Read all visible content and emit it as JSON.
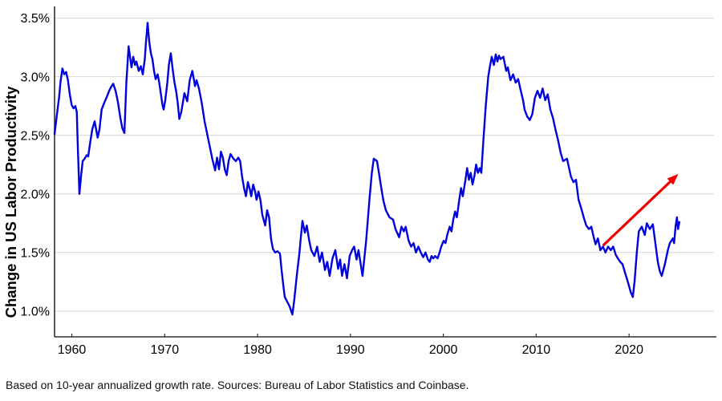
{
  "figure": {
    "caption": "Based on 10-year annualized growth rate. Sources: Bureau of Labor Statistics and Coinbase.",
    "colors": {
      "line": "#0101dd",
      "arrow": "#ee0000",
      "grid": "#d6d6d6",
      "axis": "#2e2e2e",
      "text": "#000000",
      "background": "#ffffff"
    }
  },
  "chart_data": {
    "type": "line",
    "title": "",
    "xlabel": "",
    "ylabel": "Change in US Labor Productivity",
    "grid": "horizontal",
    "legend": "none",
    "x_ticks": [
      1960,
      1970,
      1980,
      1990,
      2000,
      2010,
      2020
    ],
    "y_ticks": [
      {
        "value": 1.0,
        "label": "1.0%"
      },
      {
        "value": 1.5,
        "label": "1.5%"
      },
      {
        "value": 2.0,
        "label": "2.0%"
      },
      {
        "value": 2.5,
        "label": "2.5%"
      },
      {
        "value": 3.0,
        "label": "3.0%"
      },
      {
        "value": 3.5,
        "label": "3.5%"
      }
    ],
    "xlim": [
      1958.14,
      2029.14
    ],
    "ylim": [
      0.78,
      3.6
    ],
    "annotation_arrow": {
      "from": [
        2017.2,
        1.56
      ],
      "to": [
        2025.3,
        2.17
      ],
      "color": "#ee0000"
    },
    "series": [
      {
        "name": "US labor productivity (10-yr annualized growth, %)",
        "points": [
          [
            1958.14,
            2.51
          ],
          [
            1958.4,
            2.68
          ],
          [
            1958.62,
            2.82
          ],
          [
            1958.79,
            2.96
          ],
          [
            1958.99,
            3.07
          ],
          [
            1959.18,
            3.02
          ],
          [
            1959.38,
            3.04
          ],
          [
            1959.58,
            2.97
          ],
          [
            1959.78,
            2.85
          ],
          [
            1959.98,
            2.76
          ],
          [
            1960.18,
            2.73
          ],
          [
            1960.38,
            2.75
          ],
          [
            1960.53,
            2.7
          ],
          [
            1960.65,
            2.38
          ],
          [
            1960.82,
            2.0
          ],
          [
            1960.99,
            2.15
          ],
          [
            1961.17,
            2.28
          ],
          [
            1961.38,
            2.3
          ],
          [
            1961.6,
            2.33
          ],
          [
            1961.77,
            2.32
          ],
          [
            1961.94,
            2.42
          ],
          [
            1962.2,
            2.55
          ],
          [
            1962.46,
            2.62
          ],
          [
            1962.78,
            2.48
          ],
          [
            1962.98,
            2.55
          ],
          [
            1963.21,
            2.72
          ],
          [
            1963.5,
            2.78
          ],
          [
            1963.78,
            2.83
          ],
          [
            1964.02,
            2.88
          ],
          [
            1964.21,
            2.91
          ],
          [
            1964.45,
            2.94
          ],
          [
            1964.71,
            2.88
          ],
          [
            1964.97,
            2.78
          ],
          [
            1965.22,
            2.65
          ],
          [
            1965.44,
            2.56
          ],
          [
            1965.66,
            2.52
          ],
          [
            1965.87,
            2.95
          ],
          [
            1966.11,
            3.26
          ],
          [
            1966.42,
            3.08
          ],
          [
            1966.61,
            3.17
          ],
          [
            1966.8,
            3.1
          ],
          [
            1966.95,
            3.13
          ],
          [
            1967.21,
            3.05
          ],
          [
            1967.43,
            3.09
          ],
          [
            1967.64,
            3.02
          ],
          [
            1967.86,
            3.15
          ],
          [
            1967.99,
            3.3
          ],
          [
            1968.16,
            3.46
          ],
          [
            1968.33,
            3.3
          ],
          [
            1968.51,
            3.2
          ],
          [
            1968.68,
            3.15
          ],
          [
            1968.85,
            3.05
          ],
          [
            1969.02,
            2.98
          ],
          [
            1969.24,
            3.02
          ],
          [
            1969.41,
            2.95
          ],
          [
            1969.59,
            2.85
          ],
          [
            1969.76,
            2.76
          ],
          [
            1969.89,
            2.72
          ],
          [
            1970.06,
            2.8
          ],
          [
            1970.28,
            2.95
          ],
          [
            1970.45,
            3.1
          ],
          [
            1970.66,
            3.2
          ],
          [
            1970.88,
            3.05
          ],
          [
            1971.05,
            2.95
          ],
          [
            1971.23,
            2.88
          ],
          [
            1971.4,
            2.78
          ],
          [
            1971.57,
            2.64
          ],
          [
            1971.79,
            2.7
          ],
          [
            1972.12,
            2.86
          ],
          [
            1972.43,
            2.79
          ],
          [
            1972.69,
            2.97
          ],
          [
            1972.98,
            3.05
          ],
          [
            1973.26,
            2.92
          ],
          [
            1973.43,
            2.97
          ],
          [
            1973.69,
            2.9
          ],
          [
            1973.98,
            2.78
          ],
          [
            1974.29,
            2.62
          ],
          [
            1974.6,
            2.5
          ],
          [
            1974.81,
            2.42
          ],
          [
            1975.12,
            2.3
          ],
          [
            1975.43,
            2.2
          ],
          [
            1975.64,
            2.31
          ],
          [
            1975.85,
            2.21
          ],
          [
            1976.05,
            2.36
          ],
          [
            1976.26,
            2.31
          ],
          [
            1976.47,
            2.21
          ],
          [
            1976.68,
            2.16
          ],
          [
            1976.88,
            2.28
          ],
          [
            1977.09,
            2.34
          ],
          [
            1977.4,
            2.3
          ],
          [
            1977.66,
            2.28
          ],
          [
            1977.92,
            2.31
          ],
          [
            1978.13,
            2.28
          ],
          [
            1978.33,
            2.15
          ],
          [
            1978.54,
            2.05
          ],
          [
            1978.75,
            1.98
          ],
          [
            1978.96,
            2.1
          ],
          [
            1979.16,
            2.04
          ],
          [
            1979.32,
            1.98
          ],
          [
            1979.53,
            2.08
          ],
          [
            1979.73,
            2.02
          ],
          [
            1979.89,
            1.95
          ],
          [
            1980.1,
            2.02
          ],
          [
            1980.3,
            1.95
          ],
          [
            1980.51,
            1.82
          ],
          [
            1980.82,
            1.73
          ],
          [
            1981.03,
            1.86
          ],
          [
            1981.24,
            1.8
          ],
          [
            1981.44,
            1.62
          ],
          [
            1981.65,
            1.53
          ],
          [
            1981.89,
            1.5
          ],
          [
            1982.15,
            1.51
          ],
          [
            1982.41,
            1.49
          ],
          [
            1982.58,
            1.35
          ],
          [
            1982.8,
            1.2
          ],
          [
            1982.93,
            1.12
          ],
          [
            1983.19,
            1.08
          ],
          [
            1983.45,
            1.04
          ],
          [
            1983.75,
            0.97
          ],
          [
            1983.96,
            1.1
          ],
          [
            1984.22,
            1.3
          ],
          [
            1984.51,
            1.5
          ],
          [
            1984.66,
            1.63
          ],
          [
            1984.83,
            1.77
          ],
          [
            1985.09,
            1.67
          ],
          [
            1985.3,
            1.73
          ],
          [
            1985.56,
            1.6
          ],
          [
            1985.78,
            1.52
          ],
          [
            1986.12,
            1.47
          ],
          [
            1986.41,
            1.55
          ],
          [
            1986.69,
            1.42
          ],
          [
            1986.94,
            1.5
          ],
          [
            1987.26,
            1.35
          ],
          [
            1987.5,
            1.42
          ],
          [
            1987.76,
            1.3
          ],
          [
            1988.07,
            1.45
          ],
          [
            1988.37,
            1.52
          ],
          [
            1988.67,
            1.36
          ],
          [
            1988.89,
            1.44
          ],
          [
            1989.1,
            1.3
          ],
          [
            1989.36,
            1.4
          ],
          [
            1989.62,
            1.28
          ],
          [
            1989.92,
            1.47
          ],
          [
            1990.18,
            1.52
          ],
          [
            1990.4,
            1.55
          ],
          [
            1990.66,
            1.44
          ],
          [
            1990.87,
            1.52
          ],
          [
            1991.3,
            1.3
          ],
          [
            1991.69,
            1.6
          ],
          [
            1992.04,
            1.95
          ],
          [
            1992.3,
            2.18
          ],
          [
            1992.51,
            2.3
          ],
          [
            1992.86,
            2.28
          ],
          [
            1993.12,
            2.15
          ],
          [
            1993.38,
            2.02
          ],
          [
            1993.55,
            1.94
          ],
          [
            1993.81,
            1.86
          ],
          [
            1994.2,
            1.8
          ],
          [
            1994.59,
            1.78
          ],
          [
            1994.85,
            1.7
          ],
          [
            1995.24,
            1.63
          ],
          [
            1995.5,
            1.72
          ],
          [
            1995.75,
            1.68
          ],
          [
            1995.95,
            1.72
          ],
          [
            1996.27,
            1.6
          ],
          [
            1996.53,
            1.55
          ],
          [
            1996.79,
            1.58
          ],
          [
            1997.05,
            1.5
          ],
          [
            1997.31,
            1.55
          ],
          [
            1997.57,
            1.5
          ],
          [
            1997.83,
            1.46
          ],
          [
            1998.08,
            1.5
          ],
          [
            1998.34,
            1.44
          ],
          [
            1998.54,
            1.42
          ],
          [
            1998.73,
            1.47
          ],
          [
            1998.93,
            1.45
          ],
          [
            1999.12,
            1.47
          ],
          [
            1999.38,
            1.45
          ],
          [
            1999.6,
            1.5
          ],
          [
            1999.77,
            1.55
          ],
          [
            2000.03,
            1.6
          ],
          [
            2000.23,
            1.58
          ],
          [
            2000.42,
            1.65
          ],
          [
            2000.68,
            1.72
          ],
          [
            2000.88,
            1.68
          ],
          [
            2001.07,
            1.78
          ],
          [
            2001.27,
            1.85
          ],
          [
            2001.46,
            1.8
          ],
          [
            2001.72,
            1.95
          ],
          [
            2001.91,
            2.05
          ],
          [
            2002.1,
            1.98
          ],
          [
            2002.36,
            2.11
          ],
          [
            2002.56,
            2.22
          ],
          [
            2002.75,
            2.12
          ],
          [
            2002.95,
            2.18
          ],
          [
            2003.14,
            2.08
          ],
          [
            2003.34,
            2.15
          ],
          [
            2003.53,
            2.25
          ],
          [
            2003.73,
            2.18
          ],
          [
            2003.92,
            2.22
          ],
          [
            2004.09,
            2.18
          ],
          [
            2004.31,
            2.45
          ],
          [
            2004.57,
            2.75
          ],
          [
            2004.83,
            3.0
          ],
          [
            2005.04,
            3.1
          ],
          [
            2005.21,
            3.17
          ],
          [
            2005.44,
            3.1
          ],
          [
            2005.65,
            3.19
          ],
          [
            2005.82,
            3.13
          ],
          [
            2005.99,
            3.18
          ],
          [
            2006.16,
            3.15
          ],
          [
            2006.47,
            3.17
          ],
          [
            2006.77,
            3.05
          ],
          [
            2006.94,
            3.08
          ],
          [
            2007.23,
            2.97
          ],
          [
            2007.51,
            3.02
          ],
          [
            2007.79,
            2.95
          ],
          [
            2008.06,
            2.98
          ],
          [
            2008.34,
            2.88
          ],
          [
            2008.58,
            2.8
          ],
          [
            2008.75,
            2.72
          ],
          [
            2009.03,
            2.66
          ],
          [
            2009.31,
            2.63
          ],
          [
            2009.58,
            2.68
          ],
          [
            2009.86,
            2.82
          ],
          [
            2010.14,
            2.88
          ],
          [
            2010.41,
            2.82
          ],
          [
            2010.69,
            2.9
          ],
          [
            2010.97,
            2.8
          ],
          [
            2011.24,
            2.85
          ],
          [
            2011.52,
            2.72
          ],
          [
            2011.8,
            2.65
          ],
          [
            2012.07,
            2.55
          ],
          [
            2012.35,
            2.46
          ],
          [
            2012.63,
            2.35
          ],
          [
            2012.9,
            2.28
          ],
          [
            2013.32,
            2.3
          ],
          [
            2013.73,
            2.15
          ],
          [
            2014.01,
            2.1
          ],
          [
            2014.28,
            2.12
          ],
          [
            2014.56,
            1.95
          ],
          [
            2014.84,
            1.88
          ],
          [
            2015.11,
            1.8
          ],
          [
            2015.39,
            1.73
          ],
          [
            2015.67,
            1.7
          ],
          [
            2015.93,
            1.72
          ],
          [
            2016.19,
            1.63
          ],
          [
            2016.39,
            1.57
          ],
          [
            2016.64,
            1.62
          ],
          [
            2016.91,
            1.52
          ],
          [
            2017.19,
            1.55
          ],
          [
            2017.46,
            1.5
          ],
          [
            2017.74,
            1.55
          ],
          [
            2018.02,
            1.52
          ],
          [
            2018.29,
            1.55
          ],
          [
            2018.57,
            1.48
          ],
          [
            2018.78,
            1.45
          ],
          [
            2019.04,
            1.42
          ],
          [
            2019.29,
            1.4
          ],
          [
            2019.55,
            1.33
          ],
          [
            2019.86,
            1.25
          ],
          [
            2020.18,
            1.16
          ],
          [
            2020.4,
            1.12
          ],
          [
            2020.59,
            1.25
          ],
          [
            2020.83,
            1.5
          ],
          [
            2021.05,
            1.68
          ],
          [
            2021.37,
            1.72
          ],
          [
            2021.69,
            1.65
          ],
          [
            2021.91,
            1.75
          ],
          [
            2022.23,
            1.7
          ],
          [
            2022.56,
            1.74
          ],
          [
            2022.88,
            1.55
          ],
          [
            2023.09,
            1.42
          ],
          [
            2023.31,
            1.34
          ],
          [
            2023.52,
            1.3
          ],
          [
            2023.85,
            1.4
          ],
          [
            2024.17,
            1.52
          ],
          [
            2024.39,
            1.58
          ],
          [
            2024.71,
            1.62
          ],
          [
            2024.85,
            1.58
          ],
          [
            2025.0,
            1.72
          ],
          [
            2025.15,
            1.8
          ],
          [
            2025.27,
            1.7
          ],
          [
            2025.42,
            1.76
          ]
        ]
      }
    ]
  }
}
